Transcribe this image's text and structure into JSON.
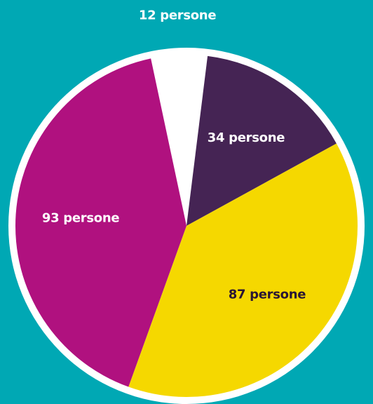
{
  "chart_data": {
    "type": "pie",
    "categories": [
      null,
      null,
      null,
      null
    ],
    "values": [
      12,
      34,
      87,
      93
    ],
    "value_labels": [
      "12 persone",
      "34 persone",
      "87 persone",
      "93 persone"
    ],
    "colors": [
      "#ffffff",
      "#452454",
      "#f5d800",
      "#b0117f"
    ]
  }
}
